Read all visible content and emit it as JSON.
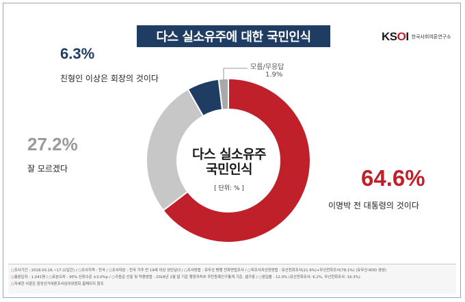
{
  "title": "다스 실소유주에 대한 국민인식",
  "logo": {
    "mark_k": "K",
    "mark_s": "S",
    "mark_o": "O",
    "mark_i": "I",
    "text": "한국사회여론연구소"
  },
  "chart_data": {
    "type": "pie",
    "center_title_line1": "다스 실소유주",
    "center_title_line2": "국민인식",
    "unit_label": "[ 단위: % ]",
    "slices": [
      {
        "label": "이명박 전 대통령의 것이다",
        "value": 64.6,
        "value_text": "64.6%",
        "color": "#c0202a"
      },
      {
        "label": "잘 모르겠다",
        "value": 27.2,
        "value_text": "27.2%",
        "color": "#c7c7c7"
      },
      {
        "label": "친형인 이상은 회장의 것이다",
        "value": 6.3,
        "value_text": "6.3%",
        "color": "#1f3c63"
      },
      {
        "label": "모름/무응답",
        "value": 1.9,
        "value_text": "1.9%",
        "color": "#a9a9a9"
      }
    ]
  },
  "notes": {
    "line1": "○조사기간 : 2018.03.16.~17.(2일간)  /  ○조사지역 : 전국  /  ○조사대상 : 전국 거주 만 19세 이상 성인남녀  /  ○조사방법 : 유무선 병행 전화면접조사  /  ○피조사자선정방법 : 유선전화조사(21.9%)+무선전화조사(78.1%) (유무선-RDD 생성)",
    "line2": "○총응답자 : 1,041명  /  ○표본오차 : 95% 신뢰수준 ±3.0%p  /  ○가중값 산출 및 적용방법 : 2018년 2월 말 기준 행정자치부 주민등록인구통계 기준, 셀가중  /  ○응답률 : 12.0% (유선전화조사: 6.2%, 무선전화조사: 16.3%)",
    "line3": "○자세한 사항은 중앙선거여론조사심의위원회 홈페이지 참조"
  }
}
